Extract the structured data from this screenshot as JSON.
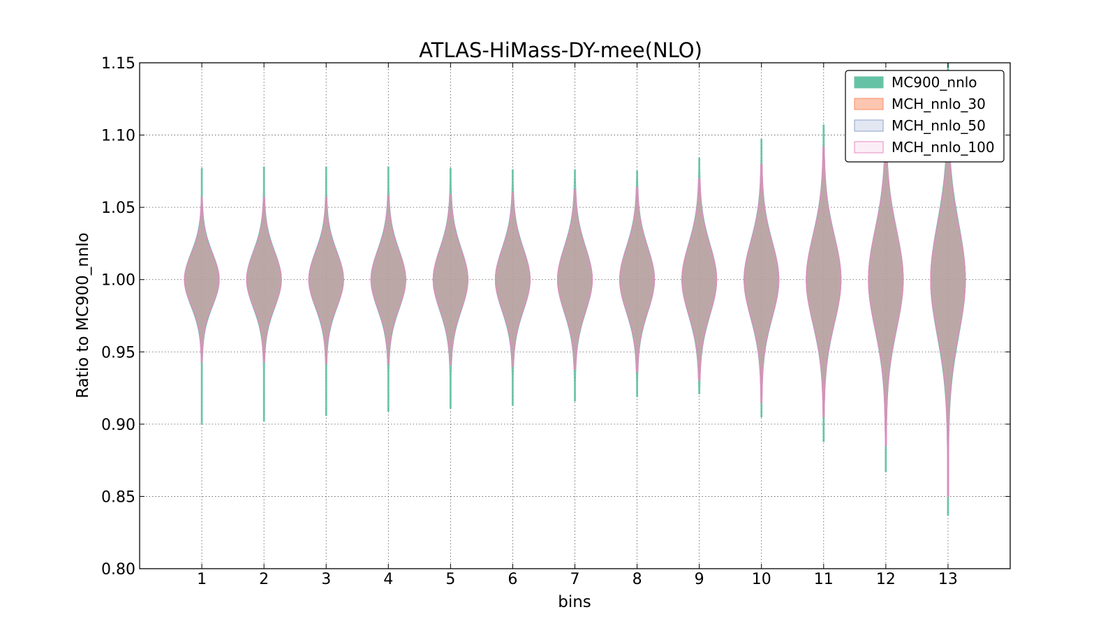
{
  "chart_data": {
    "type": "violin",
    "title": "ATLAS-HiMass-DY-mee(NLO)",
    "xlabel": "bins",
    "ylabel": "Ratio to MC900_nnlo",
    "ylim": [
      0.8,
      1.15
    ],
    "yticks": [
      "0.80",
      "0.85",
      "0.90",
      "0.95",
      "1.00",
      "1.05",
      "1.10",
      "1.15"
    ],
    "categories": [
      "1",
      "2",
      "3",
      "4",
      "5",
      "6",
      "7",
      "8",
      "9",
      "10",
      "11",
      "12",
      "13"
    ],
    "grid": true,
    "legend_position": "top-right",
    "center": 1.0,
    "series": [
      {
        "name": "MC900_nnlo",
        "color": "#66c2a5",
        "edge": "#66c2a5",
        "min": [
          0.9,
          0.902,
          0.906,
          0.909,
          0.911,
          0.913,
          0.916,
          0.919,
          0.921,
          0.905,
          0.888,
          0.867,
          0.837
        ],
        "max": [
          1.077,
          1.078,
          1.078,
          1.078,
          1.077,
          1.076,
          1.076,
          1.075,
          1.084,
          1.097,
          1.107,
          1.122,
          1.15
        ],
        "sigma": [
          0.018,
          0.019,
          0.019,
          0.02,
          0.021,
          0.021,
          0.022,
          0.022,
          0.024,
          0.026,
          0.03,
          0.034,
          0.038
        ]
      },
      {
        "name": "MCH_nnlo_30",
        "color": "#fc8d62",
        "edge": "#fc8d62",
        "min": [
          0.943,
          0.943,
          0.942,
          0.942,
          0.941,
          0.94,
          0.938,
          0.936,
          0.93,
          0.915,
          0.905,
          0.885,
          0.85
        ],
        "max": [
          1.057,
          1.057,
          1.057,
          1.058,
          1.059,
          1.06,
          1.062,
          1.064,
          1.07,
          1.08,
          1.092,
          1.11,
          1.13
        ],
        "sigma": [
          0.017,
          0.018,
          0.018,
          0.019,
          0.02,
          0.02,
          0.021,
          0.021,
          0.023,
          0.025,
          0.029,
          0.033,
          0.036
        ]
      },
      {
        "name": "MCH_nnlo_50",
        "color": "#8da0cb",
        "edge": "#8da0cb",
        "min": [
          0.943,
          0.943,
          0.942,
          0.942,
          0.941,
          0.94,
          0.938,
          0.936,
          0.93,
          0.915,
          0.905,
          0.885,
          0.85
        ],
        "max": [
          1.057,
          1.057,
          1.057,
          1.058,
          1.059,
          1.06,
          1.062,
          1.064,
          1.07,
          1.08,
          1.092,
          1.11,
          1.13
        ],
        "sigma": [
          0.017,
          0.018,
          0.018,
          0.019,
          0.02,
          0.02,
          0.021,
          0.021,
          0.023,
          0.025,
          0.029,
          0.033,
          0.036
        ]
      },
      {
        "name": "MCH_nnlo_100",
        "color": "#e78ac3",
        "edge": "#e78ac3",
        "min": [
          0.943,
          0.943,
          0.942,
          0.942,
          0.941,
          0.94,
          0.938,
          0.936,
          0.93,
          0.915,
          0.905,
          0.885,
          0.85
        ],
        "max": [
          1.057,
          1.057,
          1.057,
          1.058,
          1.059,
          1.06,
          1.062,
          1.064,
          1.07,
          1.08,
          1.092,
          1.11,
          1.13
        ],
        "sigma": [
          0.017,
          0.018,
          0.018,
          0.019,
          0.02,
          0.02,
          0.021,
          0.021,
          0.023,
          0.025,
          0.029,
          0.033,
          0.036
        ]
      }
    ]
  }
}
